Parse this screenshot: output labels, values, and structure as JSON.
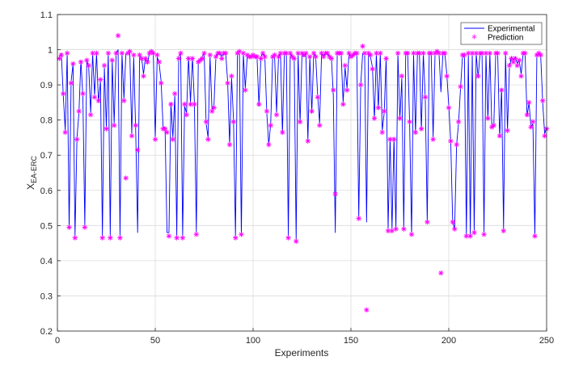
{
  "chart_data": {
    "type": "line",
    "title": "",
    "xlabel": "Experiments",
    "ylabel_main": "X",
    "ylabel_sub": "EA-ERC",
    "xlim": [
      0,
      250
    ],
    "ylim": [
      0.2,
      1.1
    ],
    "xticks": [
      "0",
      "50",
      "100",
      "150",
      "200",
      "250"
    ],
    "yticks": [
      "0.2",
      "0.3",
      "0.4",
      "0.5",
      "0.6",
      "0.7",
      "0.8",
      "0.9",
      "1",
      "1.1"
    ],
    "grid": true,
    "legend_position": "top-right",
    "series": [
      {
        "name": "Experimental",
        "style": "line",
        "color": "#0000ff",
        "x": [
          1,
          2,
          3,
          4,
          5,
          6,
          7,
          8,
          9,
          10,
          11,
          12,
          13,
          14,
          15,
          16,
          17,
          18,
          19,
          20,
          21,
          22,
          23,
          24,
          25,
          26,
          27,
          28,
          29,
          30,
          31,
          32,
          33,
          34,
          35,
          36,
          37,
          38,
          39,
          40,
          41,
          42,
          43,
          44,
          45,
          46,
          47,
          48,
          49,
          50,
          51,
          52,
          53,
          54,
          55,
          56,
          57,
          58,
          59,
          60,
          61,
          62,
          63,
          64,
          65,
          66,
          67,
          68,
          69,
          70,
          71,
          72,
          73,
          74,
          75,
          76,
          77,
          78,
          79,
          80,
          81,
          82,
          83,
          84,
          85,
          86,
          87,
          88,
          89,
          90,
          91,
          92,
          93,
          94,
          95,
          96,
          97,
          98,
          99,
          100,
          101,
          102,
          103,
          104,
          105,
          106,
          107,
          108,
          109,
          110,
          111,
          112,
          113,
          114,
          115,
          116,
          117,
          118,
          119,
          120,
          121,
          122,
          123,
          124,
          125,
          126,
          127,
          128,
          129,
          130,
          131,
          132,
          133,
          134,
          135,
          136,
          137,
          138,
          139,
          140,
          141,
          142,
          143,
          144,
          145,
          146,
          147,
          148,
          149,
          150,
          151,
          152,
          153,
          154,
          155,
          156,
          157,
          158,
          159,
          160,
          161,
          162,
          163,
          164,
          165,
          166,
          167,
          168,
          169,
          170,
          171,
          172,
          173,
          174,
          175,
          176,
          177,
          178,
          179,
          180,
          181,
          182,
          183,
          184,
          185,
          186,
          187,
          188,
          189,
          190,
          191,
          192,
          193,
          194,
          195,
          196,
          197,
          198,
          199,
          200,
          201,
          202,
          203,
          204,
          205,
          206,
          207,
          208,
          209,
          210,
          211,
          212,
          213,
          214,
          215,
          216,
          217,
          218,
          219,
          220,
          221,
          222,
          223,
          224,
          225,
          226,
          227,
          228,
          229,
          230,
          231,
          232,
          233,
          234,
          235,
          236,
          237,
          238,
          239,
          240,
          241,
          242,
          243,
          244,
          245,
          246,
          247,
          248,
          249,
          250
        ],
        "values": [
          0.98,
          0.99,
          0.87,
          0.77,
          0.99,
          0.49,
          0.91,
          0.96,
          0.47,
          0.75,
          0.82,
          0.97,
          0.87,
          0.5,
          0.97,
          0.95,
          0.82,
          0.99,
          0.87,
          0.99,
          0.85,
          0.91,
          0.47,
          0.95,
          0.78,
          0.99,
          0.47,
          0.97,
          0.79,
          0.99,
          1.0,
          0.47,
          0.99,
          0.86,
          0.99,
          0.99,
          0.99,
          0.76,
          0.98,
          0.77,
          0.48,
          0.98,
          0.98,
          0.93,
          0.98,
          0.96,
          0.99,
          0.99,
          0.99,
          0.75,
          0.98,
          0.96,
          0.91,
          0.78,
          0.78,
          0.48,
          0.48,
          0.85,
          0.75,
          0.87,
          0.47,
          0.98,
          0.99,
          0.47,
          0.84,
          0.82,
          0.98,
          0.85,
          0.98,
          0.85,
          0.48,
          0.97,
          0.97,
          0.98,
          0.99,
          0.79,
          0.75,
          0.98,
          0.83,
          0.84,
          0.98,
          0.99,
          0.99,
          0.98,
          0.99,
          0.99,
          0.91,
          0.73,
          0.92,
          0.8,
          0.47,
          0.99,
          0.99,
          0.47,
          0.99,
          0.89,
          0.98,
          0.98,
          0.98,
          0.98,
          0.98,
          0.98,
          0.84,
          0.98,
          0.99,
          0.98,
          0.82,
          0.73,
          0.79,
          0.98,
          0.98,
          0.82,
          0.98,
          0.99,
          0.76,
          0.99,
          0.99,
          0.47,
          0.99,
          0.98,
          0.98,
          0.46,
          0.99,
          0.79,
          0.99,
          0.98,
          0.99,
          0.74,
          0.98,
          0.82,
          0.99,
          0.98,
          0.87,
          0.79,
          0.99,
          0.98,
          0.99,
          0.99,
          0.98,
          0.98,
          0.87,
          0.48,
          0.99,
          0.99,
          0.99,
          0.85,
          0.95,
          0.89,
          0.99,
          0.98,
          0.98,
          0.99,
          0.99,
          0.52,
          0.9,
          0.99,
          0.99,
          0.51,
          0.99,
          0.98,
          0.95,
          0.8,
          0.99,
          0.83,
          0.99,
          0.77,
          0.82,
          0.98,
          0.49,
          0.75,
          0.49,
          0.75,
          0.49,
          0.99,
          0.8,
          0.92,
          0.49,
          0.99,
          0.99,
          0.79,
          0.47,
          0.99,
          0.76,
          0.99,
          0.99,
          0.77,
          0.99,
          0.86,
          0.51,
          0.99,
          0.99,
          0.75,
          0.99,
          0.99,
          0.99,
          0.88,
          0.99,
          0.99,
          0.93,
          0.84,
          0.74,
          0.51,
          0.49,
          0.73,
          0.79,
          0.89,
          0.98,
          0.98,
          0.47,
          0.99,
          0.47,
          0.99,
          0.48,
          0.99,
          0.92,
          0.99,
          0.99,
          0.48,
          0.99,
          0.8,
          0.99,
          0.78,
          0.78,
          0.99,
          0.99,
          0.75,
          0.89,
          0.49,
          0.99,
          0.77,
          0.95,
          0.98,
          0.97,
          0.98,
          0.96,
          0.97,
          0.93,
          0.99,
          0.99,
          0.81,
          0.85,
          0.78,
          0.79,
          0.47,
          0.98,
          0.99,
          0.98,
          0.85,
          0.76,
          0.78
        ]
      },
      {
        "name": "Prediction",
        "style": "marker",
        "marker": "*",
        "color": "#ff00ff",
        "x": [
          1,
          2,
          3,
          4,
          5,
          6,
          7,
          8,
          9,
          10,
          11,
          12,
          13,
          14,
          15,
          16,
          17,
          18,
          19,
          20,
          21,
          22,
          23,
          24,
          25,
          26,
          27,
          28,
          29,
          30,
          31,
          32,
          33,
          34,
          35,
          36,
          37,
          38,
          39,
          40,
          41,
          42,
          43,
          44,
          45,
          46,
          47,
          48,
          49,
          50,
          51,
          52,
          53,
          54,
          55,
          56,
          57,
          58,
          59,
          60,
          61,
          62,
          63,
          64,
          65,
          66,
          67,
          68,
          69,
          70,
          71,
          72,
          73,
          74,
          75,
          76,
          77,
          78,
          79,
          80,
          81,
          82,
          83,
          84,
          85,
          86,
          87,
          88,
          89,
          90,
          91,
          92,
          93,
          94,
          95,
          96,
          97,
          98,
          99,
          100,
          101,
          102,
          103,
          104,
          105,
          106,
          107,
          108,
          109,
          110,
          111,
          112,
          113,
          114,
          115,
          116,
          117,
          118,
          119,
          120,
          121,
          122,
          123,
          124,
          125,
          126,
          127,
          128,
          129,
          130,
          131,
          132,
          133,
          134,
          135,
          136,
          137,
          138,
          139,
          140,
          141,
          142,
          143,
          144,
          145,
          146,
          147,
          148,
          149,
          150,
          151,
          152,
          153,
          154,
          155,
          156,
          157,
          158,
          159,
          160,
          161,
          162,
          163,
          164,
          165,
          166,
          167,
          168,
          169,
          170,
          171,
          172,
          173,
          174,
          175,
          176,
          177,
          178,
          179,
          180,
          181,
          182,
          183,
          184,
          185,
          186,
          187,
          188,
          189,
          190,
          191,
          192,
          193,
          194,
          195,
          196,
          197,
          198,
          199,
          200,
          201,
          202,
          203,
          204,
          205,
          206,
          207,
          208,
          209,
          210,
          211,
          212,
          213,
          214,
          215,
          216,
          217,
          218,
          219,
          220,
          221,
          222,
          223,
          224,
          225,
          226,
          227,
          228,
          229,
          230,
          231,
          232,
          233,
          234,
          235,
          236,
          237,
          238,
          239,
          240,
          241,
          242,
          243,
          244,
          245,
          246,
          247,
          248,
          249,
          250
        ],
        "values": [
          0.975,
          0.985,
          0.875,
          0.765,
          0.99,
          0.495,
          0.905,
          0.96,
          0.465,
          0.745,
          0.825,
          0.965,
          0.875,
          0.495,
          0.97,
          0.955,
          0.815,
          0.99,
          0.865,
          0.99,
          0.855,
          0.915,
          0.465,
          0.955,
          0.775,
          0.99,
          0.465,
          0.97,
          0.785,
          0.99,
          1.04,
          0.465,
          0.99,
          0.855,
          0.635,
          0.99,
          0.995,
          0.755,
          0.985,
          0.785,
          0.715,
          0.985,
          0.975,
          0.925,
          0.975,
          0.965,
          0.99,
          0.995,
          0.99,
          0.745,
          0.985,
          0.965,
          0.905,
          0.775,
          0.775,
          0.765,
          0.47,
          0.845,
          0.745,
          0.875,
          0.465,
          0.975,
          0.99,
          0.465,
          0.845,
          0.815,
          0.975,
          0.845,
          0.975,
          0.845,
          0.475,
          0.965,
          0.97,
          0.975,
          0.99,
          0.795,
          0.745,
          0.985,
          0.825,
          0.835,
          0.98,
          0.99,
          0.99,
          0.975,
          0.99,
          0.99,
          0.905,
          0.73,
          0.925,
          0.795,
          0.465,
          0.99,
          0.995,
          0.475,
          0.99,
          0.885,
          0.985,
          0.98,
          0.98,
          0.985,
          0.98,
          0.98,
          0.845,
          0.975,
          0.99,
          0.98,
          0.825,
          0.73,
          0.785,
          0.98,
          0.985,
          0.815,
          0.98,
          0.99,
          0.765,
          0.99,
          0.99,
          0.465,
          0.99,
          0.98,
          0.975,
          0.455,
          0.99,
          0.795,
          0.99,
          0.985,
          0.99,
          0.74,
          0.98,
          0.825,
          0.99,
          0.98,
          0.865,
          0.785,
          0.99,
          0.98,
          0.99,
          0.99,
          0.98,
          0.975,
          0.885,
          0.59,
          0.99,
          0.99,
          0.99,
          0.845,
          0.955,
          0.885,
          0.99,
          0.98,
          0.985,
          0.99,
          0.99,
          0.52,
          0.9,
          1.01,
          0.99,
          0.26,
          0.99,
          0.985,
          0.945,
          0.805,
          0.99,
          0.835,
          0.99,
          0.765,
          0.825,
          0.975,
          0.485,
          0.745,
          0.485,
          0.745,
          0.49,
          0.99,
          0.805,
          0.925,
          0.49,
          0.99,
          0.99,
          0.795,
          0.475,
          0.99,
          0.765,
          0.99,
          0.99,
          0.775,
          0.99,
          0.865,
          0.51,
          0.99,
          0.99,
          0.745,
          0.99,
          0.995,
          0.99,
          0.365,
          0.99,
          0.99,
          0.925,
          0.835,
          0.74,
          0.51,
          0.49,
          0.73,
          0.795,
          0.895,
          0.985,
          0.985,
          0.47,
          0.99,
          0.47,
          0.99,
          0.48,
          0.99,
          0.925,
          0.99,
          0.99,
          0.475,
          0.99,
          0.805,
          0.99,
          0.78,
          0.785,
          0.99,
          0.99,
          0.755,
          0.885,
          0.485,
          0.99,
          0.77,
          0.955,
          0.975,
          0.965,
          0.975,
          0.955,
          0.97,
          0.925,
          0.99,
          0.99,
          0.815,
          0.85,
          0.78,
          0.795,
          0.47,
          0.985,
          0.99,
          0.985,
          0.855,
          0.755,
          0.775
        ]
      }
    ]
  }
}
